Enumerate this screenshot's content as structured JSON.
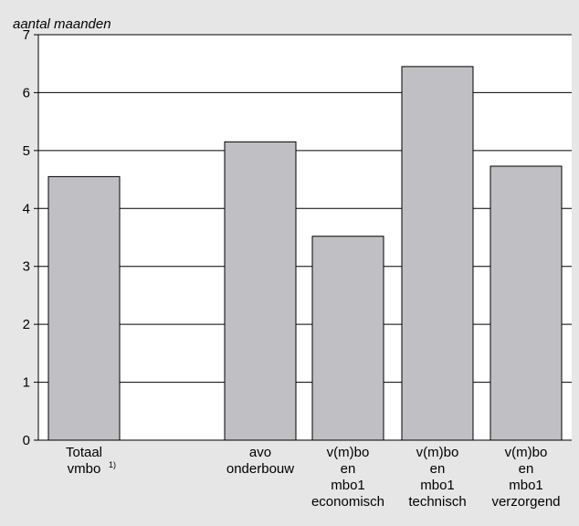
{
  "chart_data": {
    "type": "bar",
    "ylabel": "aantal maanden",
    "ylim": [
      0,
      7
    ],
    "yticks": [
      0,
      1,
      2,
      3,
      4,
      5,
      6,
      7
    ],
    "grid": true,
    "categories": [
      {
        "lines": [
          "Totaal",
          "vmbo"
        ],
        "superscript": "1)",
        "value": 4.55
      },
      {
        "lines": [
          "avo",
          "onderbouw"
        ],
        "value": 5.15
      },
      {
        "lines": [
          "v(m)bo",
          "en",
          "mbo1",
          "economisch"
        ],
        "value": 3.52
      },
      {
        "lines": [
          "v(m)bo",
          "en",
          "mbo1",
          "technisch"
        ],
        "value": 6.45
      },
      {
        "lines": [
          "v(m)bo",
          "en",
          "mbo1",
          "verzorgend"
        ],
        "value": 4.73
      }
    ],
    "colors": {
      "bar": "#c0c0c4",
      "plot_bg": "#ffffff",
      "page_bg": "#e6e6e6",
      "line": "#000000"
    }
  }
}
